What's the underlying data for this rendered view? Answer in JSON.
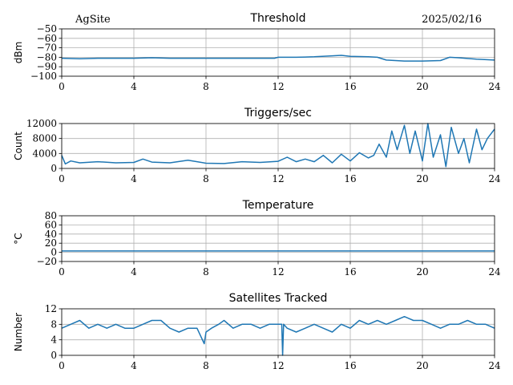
{
  "header": {
    "site": "AgSite",
    "date": "2025/02/16"
  },
  "colors": {
    "line": "#1f77b4",
    "grid": "#b0b0b0",
    "axes": "#000000"
  },
  "chart_data": [
    {
      "type": "line",
      "title": "Threshold",
      "ylabel": "dBm",
      "xlim": [
        0,
        24
      ],
      "ylim": [
        -100,
        -50
      ],
      "xticks": [
        0,
        4,
        8,
        12,
        16,
        20,
        24
      ],
      "yticks": [
        -100,
        -90,
        -80,
        -70,
        -60,
        -50
      ],
      "ytick_labels": [
        "−100",
        "−90",
        "−80",
        "−70",
        "−60",
        "−50"
      ],
      "grid": true,
      "series": [
        {
          "x": [
            0,
            1,
            2,
            3,
            4,
            5,
            6,
            7,
            8,
            9,
            10,
            11,
            11.8,
            12,
            13,
            14,
            15,
            15.5,
            16,
            17,
            17.5,
            18,
            19,
            20,
            21,
            21.5,
            22,
            23,
            24
          ],
          "y": [
            -81,
            -81.5,
            -81,
            -81,
            -81,
            -80.5,
            -81,
            -81,
            -81,
            -81,
            -81,
            -81,
            -81,
            -80,
            -80,
            -79.5,
            -78.5,
            -78,
            -79,
            -79.5,
            -80,
            -83,
            -84,
            -84,
            -83.5,
            -80,
            -80.5,
            -82,
            -83
          ]
        }
      ]
    },
    {
      "type": "line",
      "title": "Triggers/sec",
      "ylabel": "Count",
      "xlim": [
        0,
        24
      ],
      "ylim": [
        0,
        12000
      ],
      "xticks": [
        0,
        4,
        8,
        12,
        16,
        20,
        24
      ],
      "yticks": [
        0,
        4000,
        8000,
        12000
      ],
      "grid": true,
      "series": [
        {
          "x": [
            0,
            0.2,
            0.5,
            1,
            2,
            3,
            4,
            4.5,
            5,
            6,
            7,
            8,
            9,
            10,
            11,
            12,
            12.5,
            13,
            13.5,
            14,
            14.5,
            15,
            15.5,
            16,
            16.5,
            17,
            17.3,
            17.6,
            18,
            18.3,
            18.6,
            19,
            19.3,
            19.6,
            20,
            20.3,
            20.6,
            21,
            21.3,
            21.6,
            22,
            22.3,
            22.6,
            23,
            23.3,
            23.6,
            24
          ],
          "y": [
            3500,
            1200,
            2000,
            1500,
            1800,
            1500,
            1600,
            2500,
            1700,
            1500,
            2200,
            1400,
            1300,
            1800,
            1600,
            1900,
            3000,
            1800,
            2500,
            1800,
            3500,
            1500,
            3800,
            2000,
            4200,
            2800,
            3500,
            6500,
            3000,
            10000,
            5000,
            11500,
            4000,
            10000,
            2000,
            12000,
            3000,
            9000,
            500,
            11000,
            4000,
            8000,
            1500,
            10500,
            5000,
            8000,
            10500
          ]
        }
      ]
    },
    {
      "type": "line",
      "title": "Temperature",
      "ylabel": "°C",
      "xlim": [
        0,
        24
      ],
      "ylim": [
        -20,
        80
      ],
      "xticks": [
        0,
        4,
        8,
        12,
        16,
        20,
        24
      ],
      "yticks": [
        -20,
        0,
        20,
        40,
        60,
        80
      ],
      "ytick_labels": [
        "−20",
        "0",
        "20",
        "40",
        "60",
        "80"
      ],
      "grid": true,
      "series": [
        {
          "x": [
            0,
            24
          ],
          "y": [
            3,
            3
          ]
        }
      ]
    },
    {
      "type": "line",
      "title": "Satellites Tracked",
      "ylabel": "Number",
      "xlim": [
        0,
        24
      ],
      "ylim": [
        0,
        12
      ],
      "xticks": [
        0,
        4,
        8,
        12,
        16,
        20,
        24
      ],
      "yticks": [
        0,
        4,
        8,
        12
      ],
      "grid": true,
      "series": [
        {
          "x": [
            0,
            0.5,
            1,
            1.5,
            2,
            2.5,
            3,
            3.5,
            4,
            4.5,
            5,
            5.5,
            6,
            6.5,
            7,
            7.5,
            7.9,
            8,
            8.3,
            8.7,
            9,
            9.5,
            10,
            10.5,
            11,
            11.5,
            12,
            12.2,
            12.25,
            12.3,
            12.5,
            13,
            13.5,
            14,
            14.5,
            15,
            15.5,
            16,
            16.5,
            17,
            17.5,
            18,
            18.5,
            19,
            19.5,
            20,
            20.5,
            21,
            21.5,
            22,
            22.5,
            23,
            23.5,
            24
          ],
          "y": [
            7,
            8,
            9,
            7,
            8,
            7,
            8,
            7,
            7,
            8,
            9,
            9,
            7,
            6,
            7,
            7,
            3,
            6,
            7,
            8,
            9,
            7,
            8,
            8,
            7,
            8,
            8,
            8,
            0,
            8,
            7,
            6,
            7,
            8,
            7,
            6,
            8,
            7,
            9,
            8,
            9,
            8,
            9,
            10,
            9,
            9,
            8,
            7,
            8,
            8,
            9,
            8,
            8,
            7
          ]
        }
      ]
    }
  ]
}
